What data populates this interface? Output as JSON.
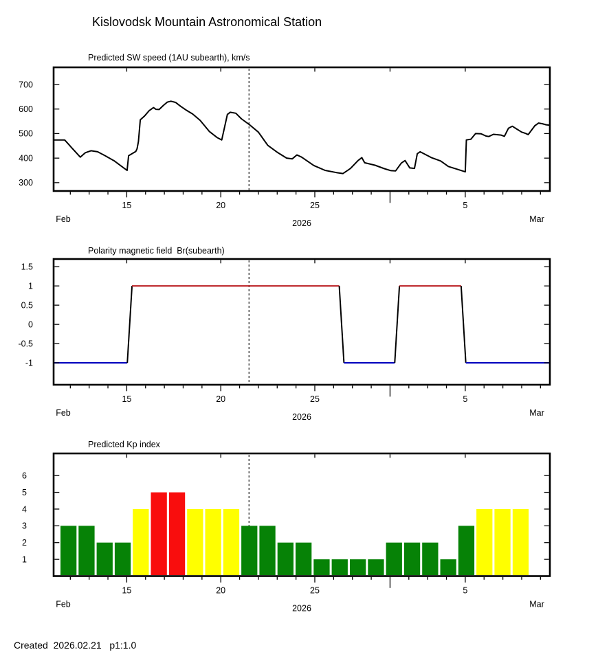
{
  "page_title": "Kislovodsk Mountain Astronomical Station",
  "footer": {
    "created": "Created  2026.02.21   p1:1.0"
  },
  "colors": {
    "background": "#ffffff",
    "axis": "#000000",
    "text": "#000000",
    "sw_line": "#000000",
    "now_line": "#000000",
    "polarity_positive": "#bc2025",
    "polarity_negative": "#0a0ac0",
    "kp_quiet": "#068206",
    "kp_active": "#ffff00",
    "kp_storm": "#f90d0d"
  },
  "time_axis": {
    "t_min": 11.11,
    "t_max": 37.5,
    "start_label": "Feb",
    "end_label": "Mar",
    "year_label": "2026",
    "major_ticks": [
      {
        "t": 15,
        "label": "15"
      },
      {
        "t": 20,
        "label": "20"
      },
      {
        "t": 25,
        "label": "25"
      },
      {
        "t": 33,
        "label": "5"
      }
    ],
    "month_boundary_t": 29,
    "now_t": 21.5,
    "now_date": "2026.02.21"
  },
  "chart_data": [
    {
      "type": "line",
      "title": "Predicted SW speed (1AU subearth), km/s",
      "ylabel": "km/s",
      "ylim": [
        266,
        770
      ],
      "yticks": [
        300,
        400,
        500,
        600,
        700
      ],
      "grid": false,
      "points": [
        [
          11.11,
          474
        ],
        [
          11.7,
          474
        ],
        [
          12.1,
          440
        ],
        [
          12.53,
          404
        ],
        [
          12.8,
          422
        ],
        [
          13.1,
          430
        ],
        [
          13.45,
          426
        ],
        [
          13.85,
          410
        ],
        [
          14.35,
          388
        ],
        [
          14.84,
          360
        ],
        [
          15.02,
          350
        ],
        [
          15.1,
          410
        ],
        [
          15.3,
          419
        ],
        [
          15.48,
          427
        ],
        [
          15.55,
          438
        ],
        [
          15.62,
          468
        ],
        [
          15.72,
          556
        ],
        [
          15.95,
          572
        ],
        [
          16.2,
          594
        ],
        [
          16.42,
          606
        ],
        [
          16.55,
          599
        ],
        [
          16.72,
          598
        ],
        [
          16.95,
          615
        ],
        [
          17.15,
          628
        ],
        [
          17.35,
          632
        ],
        [
          17.6,
          627
        ],
        [
          17.85,
          612
        ],
        [
          18.15,
          596
        ],
        [
          18.5,
          580
        ],
        [
          18.9,
          554
        ],
        [
          19.4,
          508
        ],
        [
          19.8,
          484
        ],
        [
          20.05,
          474
        ],
        [
          20.35,
          578
        ],
        [
          20.5,
          587
        ],
        [
          20.8,
          583
        ],
        [
          21.1,
          560
        ],
        [
          21.5,
          538
        ],
        [
          22.0,
          506
        ],
        [
          22.5,
          452
        ],
        [
          23.0,
          424
        ],
        [
          23.5,
          400
        ],
        [
          23.8,
          397
        ],
        [
          24.05,
          413
        ],
        [
          24.3,
          404
        ],
        [
          24.95,
          370
        ],
        [
          25.55,
          350
        ],
        [
          26.15,
          341
        ],
        [
          26.5,
          337
        ],
        [
          26.9,
          358
        ],
        [
          27.3,
          390
        ],
        [
          27.5,
          402
        ],
        [
          27.65,
          381
        ],
        [
          28.2,
          371
        ],
        [
          28.7,
          357
        ],
        [
          29.05,
          349
        ],
        [
          29.3,
          348
        ],
        [
          29.6,
          380
        ],
        [
          29.8,
          390
        ],
        [
          30.05,
          360
        ],
        [
          30.3,
          358
        ],
        [
          30.45,
          418
        ],
        [
          30.6,
          426
        ],
        [
          31.2,
          402
        ],
        [
          31.7,
          388
        ],
        [
          32.1,
          366
        ],
        [
          32.6,
          354
        ],
        [
          33.0,
          344
        ],
        [
          33.06,
          474
        ],
        [
          33.3,
          477
        ],
        [
          33.55,
          500
        ],
        [
          33.85,
          499
        ],
        [
          34.1,
          490
        ],
        [
          34.25,
          488
        ],
        [
          34.5,
          497
        ],
        [
          34.9,
          494
        ],
        [
          35.08,
          489
        ],
        [
          35.3,
          522
        ],
        [
          35.5,
          530
        ],
        [
          35.75,
          518
        ],
        [
          36.0,
          506
        ],
        [
          36.2,
          501
        ],
        [
          36.35,
          496
        ],
        [
          36.7,
          532
        ],
        [
          36.9,
          543
        ],
        [
          37.1,
          540
        ],
        [
          37.3,
          536
        ],
        [
          37.5,
          534
        ]
      ]
    },
    {
      "type": "line",
      "title": "Polarity magnetic field  Br(subearth)",
      "ylim": [
        -1.57,
        1.7
      ],
      "yticks": [
        1.5,
        1,
        0.5,
        0,
        -0.5,
        -1
      ],
      "grid": false,
      "segments": [
        {
          "t0": 11.11,
          "t1": 15.03,
          "value": -1,
          "polarity": "negative"
        },
        {
          "t0": 15.28,
          "t1": 26.3,
          "value": 1,
          "polarity": "positive"
        },
        {
          "t0": 26.55,
          "t1": 29.25,
          "value": -1,
          "polarity": "negative"
        },
        {
          "t0": 29.5,
          "t1": 32.78,
          "value": 1,
          "polarity": "positive"
        },
        {
          "t0": 33.03,
          "t1": 37.5,
          "value": -1,
          "polarity": "negative"
        }
      ]
    },
    {
      "type": "bar",
      "title": "Predicted Kp index",
      "ylim": [
        0,
        7.32
      ],
      "yticks": [
        1,
        2,
        3,
        4,
        5,
        6
      ],
      "grid": false,
      "bars": [
        {
          "date": "Feb 11",
          "kp": 3,
          "level": "quiet"
        },
        {
          "date": "Feb 12",
          "kp": 3,
          "level": "quiet"
        },
        {
          "date": "Feb 13",
          "kp": 2,
          "level": "quiet"
        },
        {
          "date": "Feb 14",
          "kp": 2,
          "level": "quiet"
        },
        {
          "date": "Feb 15",
          "kp": 4,
          "level": "active"
        },
        {
          "date": "Feb 16",
          "kp": 5,
          "level": "storm"
        },
        {
          "date": "Feb 17",
          "kp": 5,
          "level": "storm"
        },
        {
          "date": "Feb 18",
          "kp": 4,
          "level": "active"
        },
        {
          "date": "Feb 19",
          "kp": 4,
          "level": "active"
        },
        {
          "date": "Feb 20",
          "kp": 4,
          "level": "active"
        },
        {
          "date": "Feb 21",
          "kp": 3,
          "level": "quiet"
        },
        {
          "date": "Feb 22",
          "kp": 3,
          "level": "quiet"
        },
        {
          "date": "Feb 23",
          "kp": 2,
          "level": "quiet"
        },
        {
          "date": "Feb 24",
          "kp": 2,
          "level": "quiet"
        },
        {
          "date": "Feb 25",
          "kp": 1,
          "level": "quiet"
        },
        {
          "date": "Feb 26",
          "kp": 1,
          "level": "quiet"
        },
        {
          "date": "Feb 27",
          "kp": 1,
          "level": "quiet"
        },
        {
          "date": "Feb 28",
          "kp": 1,
          "level": "quiet"
        },
        {
          "date": "Mar 1",
          "kp": 2,
          "level": "quiet"
        },
        {
          "date": "Mar 2",
          "kp": 2,
          "level": "quiet"
        },
        {
          "date": "Mar 3",
          "kp": 2,
          "level": "quiet"
        },
        {
          "date": "Mar 4",
          "kp": 1,
          "level": "quiet"
        },
        {
          "date": "Mar 5",
          "kp": 3,
          "level": "quiet"
        },
        {
          "date": "Mar 6",
          "kp": 4,
          "level": "active"
        },
        {
          "date": "Mar 7",
          "kp": 4,
          "level": "active"
        },
        {
          "date": "Mar 8",
          "kp": 4,
          "level": "active"
        }
      ]
    }
  ]
}
